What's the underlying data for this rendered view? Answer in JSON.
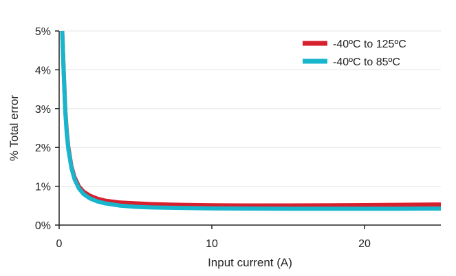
{
  "chart_data": {
    "type": "line",
    "title": "",
    "xlabel": "Input current (A)",
    "ylabel": "% Total error",
    "xlim": [
      0,
      25
    ],
    "ylim": [
      0,
      5
    ],
    "x_ticks": [
      0,
      10,
      20
    ],
    "x_tick_labels": [
      "0",
      "10",
      "20"
    ],
    "y_ticks": [
      0,
      1,
      2,
      3,
      4,
      5
    ],
    "y_tick_labels": [
      "0%",
      "1%",
      "2%",
      "3%",
      "4%",
      "5%"
    ],
    "grid": "horizontal",
    "legend_position": "top-right",
    "series": [
      {
        "name": "-40ºC to 125ºC",
        "color": "#d7202e",
        "x": [
          0.2,
          0.3,
          0.4,
          0.5,
          0.6,
          0.8,
          1.0,
          1.3,
          1.6,
          2.0,
          2.5,
          3.0,
          4.0,
          5.0,
          6.0,
          8.0,
          10.0,
          12.0,
          15.0,
          18.0,
          20.0,
          22.0,
          25.0
        ],
        "values": [
          5.0,
          3.95,
          2.98,
          2.4,
          2.01,
          1.52,
          1.24,
          0.99,
          0.86,
          0.76,
          0.68,
          0.63,
          0.58,
          0.56,
          0.54,
          0.52,
          0.51,
          0.505,
          0.505,
          0.51,
          0.515,
          0.52,
          0.53
        ]
      },
      {
        "name": "-40ºC to 85ºC",
        "color": "#17b6cc",
        "x": [
          0.2,
          0.3,
          0.4,
          0.5,
          0.6,
          0.8,
          1.0,
          1.3,
          1.6,
          2.0,
          2.5,
          3.0,
          4.0,
          5.0,
          6.0,
          8.0,
          10.0,
          12.0,
          15.0,
          18.0,
          20.0,
          22.0,
          25.0
        ],
        "values": [
          5.0,
          3.9,
          2.93,
          2.35,
          1.96,
          1.48,
          1.19,
          0.94,
          0.8,
          0.69,
          0.61,
          0.56,
          0.5,
          0.47,
          0.455,
          0.44,
          0.43,
          0.425,
          0.42,
          0.42,
          0.42,
          0.42,
          0.425
        ]
      }
    ]
  }
}
